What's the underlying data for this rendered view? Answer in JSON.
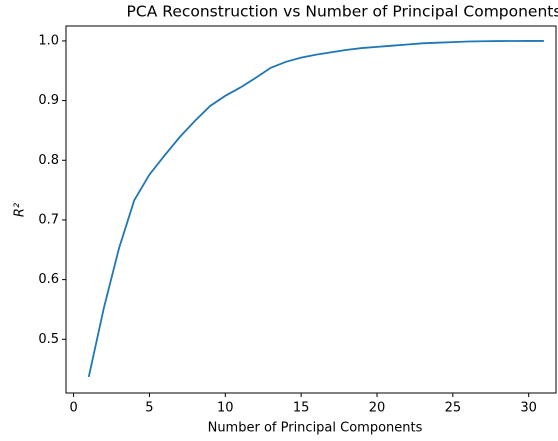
{
  "chart_data": {
    "type": "line",
    "title": "PCA Reconstruction vs Number of Principal Components",
    "xlabel": "Number of Principal Components",
    "ylabel": "R²",
    "x": [
      1,
      2,
      3,
      4,
      5,
      6,
      7,
      8,
      9,
      10,
      11,
      12,
      13,
      14,
      15,
      16,
      17,
      18,
      19,
      20,
      21,
      22,
      23,
      24,
      25,
      26,
      27,
      28,
      29,
      30,
      31
    ],
    "series": [
      {
        "color": "#1f77b4",
        "values": [
          0.437,
          0.553,
          0.653,
          0.733,
          0.776,
          0.808,
          0.839,
          0.866,
          0.891,
          0.908,
          0.922,
          0.938,
          0.955,
          0.965,
          0.972,
          0.977,
          0.981,
          0.985,
          0.988,
          0.99,
          0.992,
          0.994,
          0.996,
          0.997,
          0.998,
          0.999,
          0.9995,
          0.9998,
          0.9999,
          1.0,
          1.0
        ]
      }
    ],
    "xlim": [
      -0.5,
      31.8
    ],
    "xticks": [
      0,
      5,
      10,
      15,
      20,
      25,
      30
    ],
    "ylim": [
      0.41,
      1.025
    ],
    "yticks": [
      {
        "value": 0.5,
        "label": "0.5"
      },
      0.6,
      0.7,
      0.8,
      0.9,
      {
        "value": 1.0,
        "label": "1.0"
      }
    ],
    "grid": false
  }
}
